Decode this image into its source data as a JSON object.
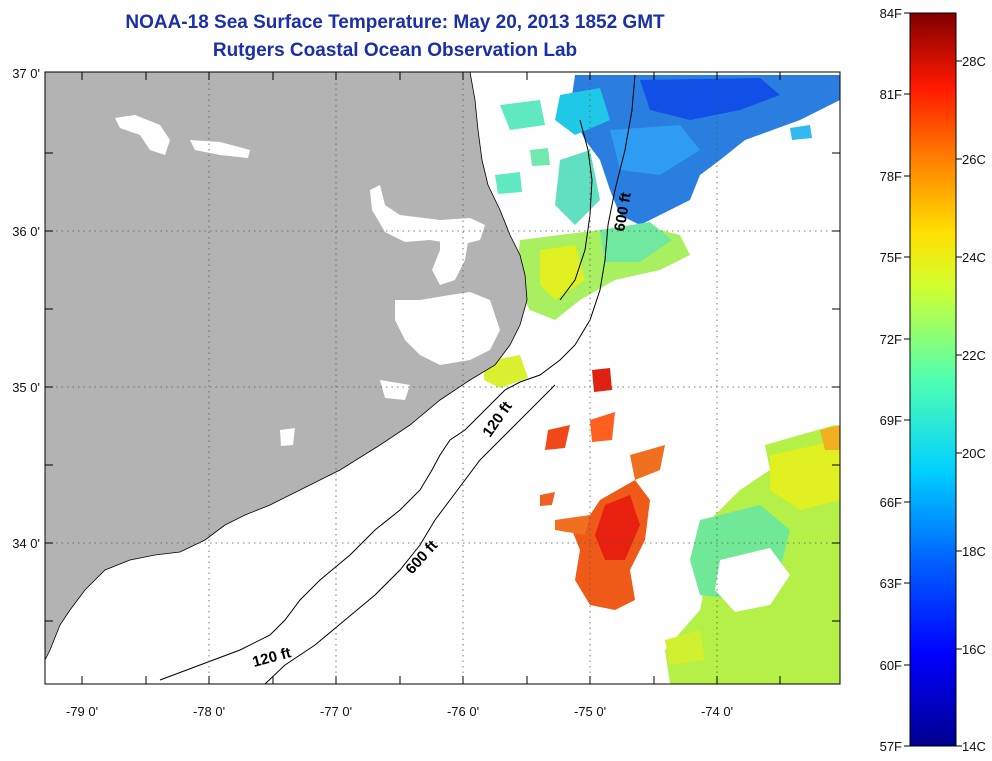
{
  "title": {
    "line1": "NOAA-18 Sea Surface Temperature:  May 20, 2013 1852 GMT",
    "line2": "Rutgers Coastal Ocean Observation Lab"
  },
  "axes": {
    "lon_labels": [
      "-79 0'",
      "-78 0'",
      "-77 0'",
      "-76 0'",
      "-75 0'",
      "-74 0'"
    ],
    "lat_labels": [
      "37 0'",
      "36 0'",
      "35 0'",
      "34 0'"
    ],
    "lon_range": [
      -79.3,
      -73.2
    ],
    "lat_range": [
      33.1,
      37.0
    ],
    "grid": "dotted"
  },
  "contours": [
    {
      "label": "600 ft",
      "depth_ft": 600
    },
    {
      "label": "120 ft",
      "depth_ft": 120
    },
    {
      "label": "600 ft",
      "depth_ft": 600
    },
    {
      "label": "120 ft",
      "depth_ft": 120
    }
  ],
  "colorbar": {
    "fahrenheit_labels": [
      "84F",
      "81F",
      "78F",
      "75F",
      "72F",
      "69F",
      "66F",
      "63F",
      "60F",
      "57F"
    ],
    "celsius_labels": [
      "28C",
      "26C",
      "24C",
      "22C",
      "20C",
      "18C",
      "16C",
      "14C"
    ],
    "range_c": [
      14,
      29
    ],
    "colormap": "jet"
  },
  "colors": {
    "land": "#b3b3b3",
    "title": "#1a2fa8",
    "ocean_nodata": "#ffffff"
  }
}
